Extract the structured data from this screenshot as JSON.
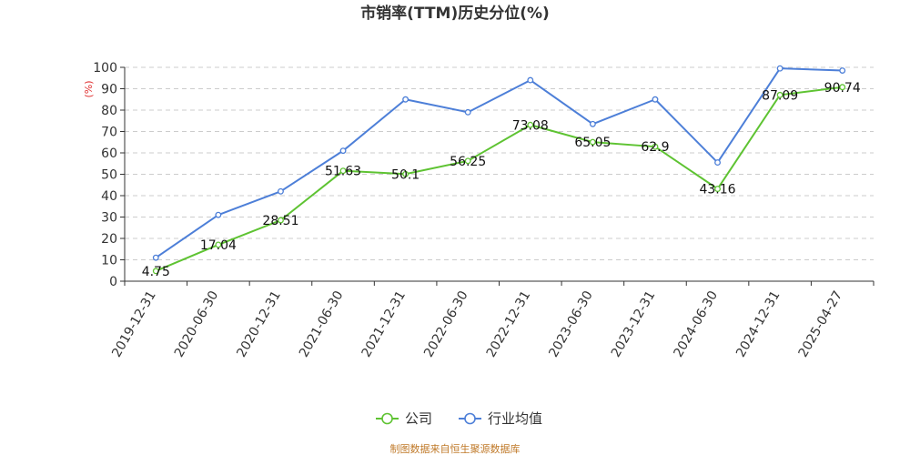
{
  "chart_data": {
    "type": "line",
    "title": "市销率(TTM)历史分位(%)",
    "ylabel": "(%)",
    "ylim": [
      0,
      100
    ],
    "yticks": [
      0,
      10,
      20,
      30,
      40,
      50,
      60,
      70,
      80,
      90,
      100
    ],
    "grid": true,
    "legend_position": "bottom-center",
    "categories": [
      "2019-12-31",
      "2020-06-30",
      "2020-12-31",
      "2021-06-30",
      "2021-12-31",
      "2022-06-30",
      "2022-12-31",
      "2023-06-30",
      "2023-12-31",
      "2024-06-30",
      "2024-12-31",
      "2025-04-27"
    ],
    "series": [
      {
        "name": "公司",
        "color": "#5ec332",
        "values": [
          4.75,
          17.04,
          28.51,
          51.63,
          50.1,
          56.25,
          73.08,
          65.05,
          62.9,
          43.16,
          87.09,
          90.74
        ],
        "labels": [
          "4.75",
          "17.04",
          "28.51",
          "51.63",
          "50.1",
          "56.25",
          "73.08",
          "65.05",
          "62.9",
          "43.16",
          "87.09",
          "90.74"
        ]
      },
      {
        "name": "行业均值",
        "color": "#4d7fd8",
        "values": [
          11,
          31,
          42,
          61,
          85,
          79,
          94,
          73.5,
          85,
          55.5,
          99.5,
          98.5
        ]
      }
    ]
  },
  "source": "制图数据来自恒生聚源数据库"
}
